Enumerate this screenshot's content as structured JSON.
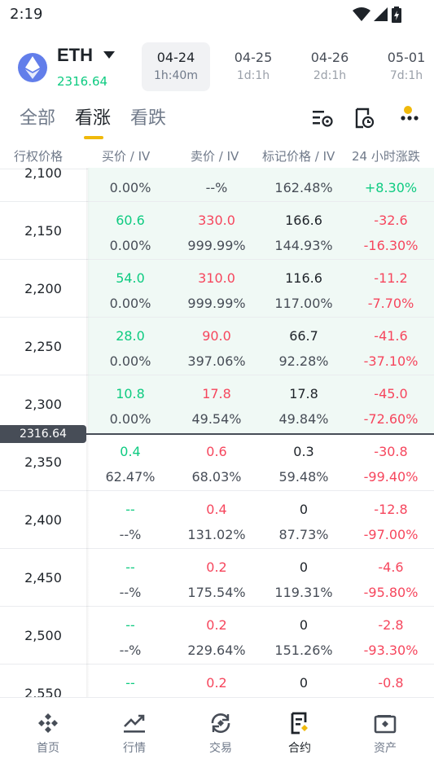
{
  "status": {
    "time": "2:19"
  },
  "asset": {
    "name": "ETH",
    "price": "2316.64"
  },
  "expiries": [
    {
      "date": "04-24",
      "duration": "1h:40m",
      "active": true
    },
    {
      "date": "04-25",
      "duration": "1d:1h",
      "active": false
    },
    {
      "date": "04-26",
      "duration": "2d:1h",
      "active": false
    },
    {
      "date": "05-01",
      "duration": "7d:1h",
      "active": false
    }
  ],
  "filters": {
    "all": "全部",
    "calls": "看涨",
    "puts": "看跌",
    "active": "calls"
  },
  "columns": {
    "strike": "行权价格",
    "bid": "买价 / IV",
    "ask": "卖价 / IV",
    "mark": "标记价格 / IV",
    "change": "24 小时涨跌"
  },
  "current_price_tag": "2316.64",
  "rows": [
    {
      "strike": "2,100",
      "bid": "",
      "bid_iv": "0.00%",
      "ask": "",
      "ask_iv": "--%",
      "mark": "",
      "mark_iv": "162.48%",
      "chg": "",
      "chg_pct": "+8.30%",
      "itm": true
    },
    {
      "strike": "2,150",
      "bid": "60.6",
      "bid_iv": "0.00%",
      "ask": "330.0",
      "ask_iv": "999.99%",
      "mark": "166.6",
      "mark_iv": "144.93%",
      "chg": "-32.6",
      "chg_pct": "-16.30%",
      "itm": true
    },
    {
      "strike": "2,200",
      "bid": "54.0",
      "bid_iv": "0.00%",
      "ask": "310.0",
      "ask_iv": "999.99%",
      "mark": "116.6",
      "mark_iv": "117.00%",
      "chg": "-11.2",
      "chg_pct": "-7.70%",
      "itm": true
    },
    {
      "strike": "2,250",
      "bid": "28.0",
      "bid_iv": "0.00%",
      "ask": "90.0",
      "ask_iv": "397.06%",
      "mark": "66.7",
      "mark_iv": "92.28%",
      "chg": "-41.6",
      "chg_pct": "-37.10%",
      "itm": true
    },
    {
      "strike": "2,300",
      "bid": "10.8",
      "bid_iv": "0.00%",
      "ask": "17.8",
      "ask_iv": "49.54%",
      "mark": "17.8",
      "mark_iv": "49.84%",
      "chg": "-45.0",
      "chg_pct": "-72.60%",
      "itm": true
    },
    {
      "strike": "2,350",
      "bid": "0.4",
      "bid_iv": "62.47%",
      "ask": "0.6",
      "ask_iv": "68.03%",
      "mark": "0.3",
      "mark_iv": "59.48%",
      "chg": "-30.8",
      "chg_pct": "-99.40%",
      "itm": false
    },
    {
      "strike": "2,400",
      "bid": "--",
      "bid_iv": "--%",
      "ask": "0.4",
      "ask_iv": "131.02%",
      "mark": "0",
      "mark_iv": "87.73%",
      "chg": "-12.8",
      "chg_pct": "-97.00%",
      "itm": false
    },
    {
      "strike": "2,450",
      "bid": "--",
      "bid_iv": "--%",
      "ask": "0.2",
      "ask_iv": "175.54%",
      "mark": "0",
      "mark_iv": "119.31%",
      "chg": "-4.6",
      "chg_pct": "-95.80%",
      "itm": false
    },
    {
      "strike": "2,500",
      "bid": "--",
      "bid_iv": "--%",
      "ask": "0.2",
      "ask_iv": "229.64%",
      "mark": "0",
      "mark_iv": "151.26%",
      "chg": "-2.8",
      "chg_pct": "-93.30%",
      "itm": false
    },
    {
      "strike": "2,550",
      "bid": "--",
      "bid_iv": "",
      "ask": "0.2",
      "ask_iv": "",
      "mark": "0",
      "mark_iv": "",
      "chg": "-0.8",
      "chg_pct": "",
      "itm": false
    }
  ],
  "nav": [
    {
      "label": "首页",
      "icon": "home-icon"
    },
    {
      "label": "行情",
      "icon": "markets-icon"
    },
    {
      "label": "交易",
      "icon": "trade-icon"
    },
    {
      "label": "合约",
      "icon": "futures-icon"
    },
    {
      "label": "资产",
      "icon": "wallet-icon"
    }
  ],
  "nav_active": "合约",
  "colors": {
    "green": "#0ecb81",
    "red": "#f6465d",
    "brand": "#f0b90b",
    "itm_bg": "#f0f9f5"
  }
}
